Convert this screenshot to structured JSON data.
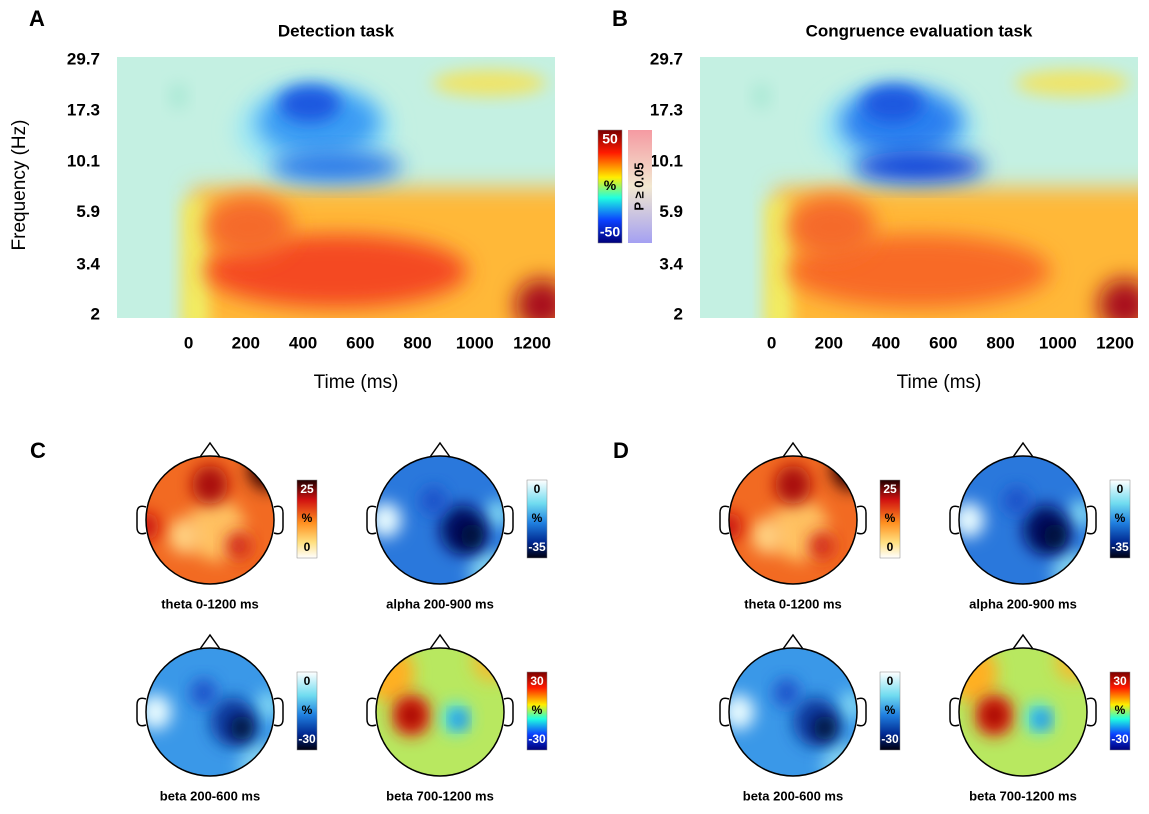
{
  "chart_data": [
    {
      "type": "heatmap",
      "panel": "A",
      "title": "Detection task",
      "x_label": "Time (ms)",
      "y_label": "Frequency (Hz)",
      "xlim": [
        -250,
        1280
      ],
      "xticks": [
        0,
        200,
        400,
        600,
        800,
        1000,
        1200
      ],
      "ylim": [
        2,
        29.7
      ],
      "yticks": [
        2,
        3.4,
        5.9,
        10.1,
        17.3,
        29.7
      ],
      "log_y": true
    },
    {
      "type": "heatmap",
      "panel": "B",
      "title": "Congruence evaluation task",
      "x_label": "Time (ms)",
      "xlim": [
        -250,
        1280
      ],
      "xticks": [
        0,
        200,
        400,
        600,
        800,
        1000,
        1200
      ],
      "ylim": [
        2,
        29.7
      ],
      "yticks": [
        2,
        3.4,
        5.9,
        10.1,
        17.3,
        29.7
      ],
      "log_y": true
    },
    {
      "type": "colorbar",
      "colormap": "jet",
      "unit": "%",
      "clim": [
        -50,
        50
      ],
      "ticks": [
        -50,
        50
      ],
      "mask_label": "P ≥ 0.05"
    },
    {
      "type": "topomap",
      "panel": "C",
      "maps": [
        {
          "title": "theta 0-1200 ms",
          "colormap": "hot",
          "unit": "%",
          "clim": [
            0,
            25
          ],
          "ticks": [
            0,
            25
          ]
        },
        {
          "title": "alpha 200-900 ms",
          "colormap": "blues",
          "unit": "%",
          "clim": [
            -35,
            0
          ],
          "ticks": [
            -35,
            0
          ]
        },
        {
          "title": "beta 200-600 ms",
          "colormap": "blues",
          "unit": "%",
          "clim": [
            -30,
            0
          ],
          "ticks": [
            -30,
            0
          ]
        },
        {
          "title": "beta 700-1200 ms",
          "colormap": "jet",
          "unit": "%",
          "clim": [
            -30,
            30
          ],
          "ticks": [
            -30,
            30
          ]
        }
      ]
    },
    {
      "type": "topomap",
      "panel": "D",
      "maps": [
        {
          "title": "theta 0-1200 ms",
          "colormap": "hot",
          "unit": "%",
          "clim": [
            0,
            25
          ],
          "ticks": [
            0,
            25
          ]
        },
        {
          "title": "alpha 200-900 ms",
          "colormap": "blues",
          "unit": "%",
          "clim": [
            -35,
            0
          ],
          "ticks": [
            -35,
            0
          ]
        },
        {
          "title": "beta 200-600 ms",
          "colormap": "blues",
          "unit": "%",
          "clim": [
            -30,
            0
          ],
          "ticks": [
            -30,
            0
          ]
        },
        {
          "title": "beta 700-1200 ms",
          "colormap": "jet",
          "unit": "%",
          "clim": [
            -30,
            30
          ],
          "ticks": [
            -30,
            30
          ]
        }
      ]
    }
  ]
}
